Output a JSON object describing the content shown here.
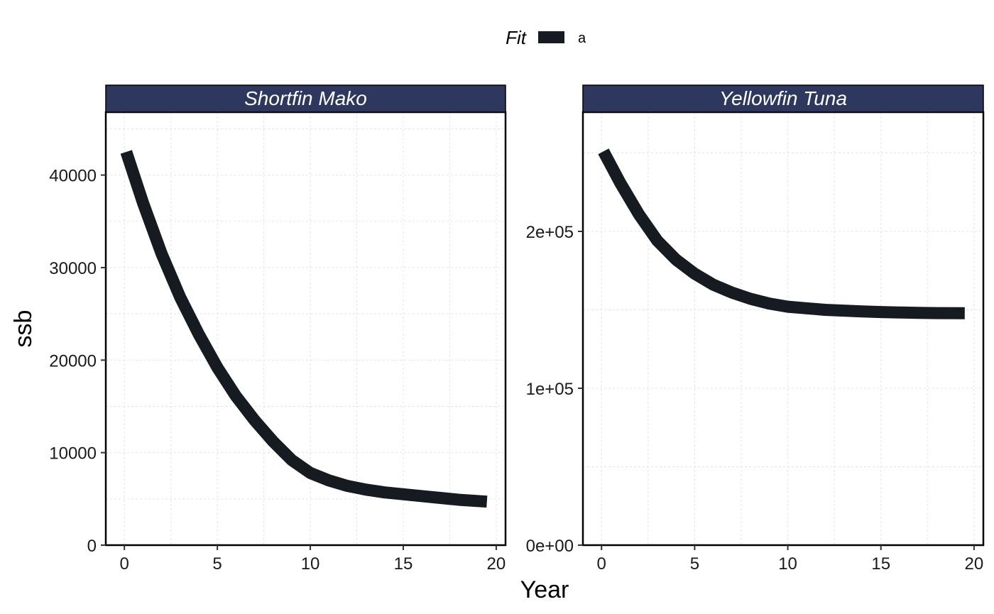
{
  "chart_data": {
    "type": "line",
    "xlabel": "Year",
    "ylabel": "ssb",
    "legend": {
      "title": "Fit",
      "placement": "top",
      "entries": [
        {
          "label": "a",
          "color": "#161b22"
        }
      ]
    },
    "colors": {
      "line": "#161b22",
      "strip": "#2e375e",
      "grid": "#e4e4e4"
    },
    "grid": true,
    "panels": [
      {
        "title": "Shortfin Mako",
        "xlim": [
          -1,
          20.5
        ],
        "ylim": [
          0,
          46800
        ],
        "xticks": [
          0,
          5,
          10,
          15,
          20
        ],
        "xtick_labels": [
          "0",
          "5",
          "10",
          "15",
          "20"
        ],
        "yticks": [
          0,
          10000,
          20000,
          30000,
          40000
        ],
        "ytick_labels": [
          "0",
          "10000",
          "20000",
          "30000",
          "40000"
        ],
        "series": [
          {
            "name": "a",
            "x": [
              0.1,
              1,
              2,
              3,
              4,
              5,
              6,
              7,
              8,
              9,
              10,
              11,
              12,
              13,
              14,
              15,
              16,
              17,
              18,
              19.5
            ],
            "y": [
              42500,
              37000,
              31500,
              26800,
              22800,
              19200,
              16100,
              13500,
              11200,
              9200,
              7800,
              7000,
              6400,
              6000,
              5700,
              5500,
              5300,
              5100,
              4900,
              4700
            ]
          }
        ]
      },
      {
        "title": "Yellowfin Tuna",
        "xlim": [
          -1,
          20.5
        ],
        "ylim": [
          0,
          276000
        ],
        "xticks": [
          0,
          5,
          10,
          15,
          20
        ],
        "xtick_labels": [
          "0",
          "5",
          "10",
          "15",
          "20"
        ],
        "yticks": [
          0,
          100000,
          200000
        ],
        "ytick_labels": [
          "0e+00",
          "1e+05",
          "2e+05"
        ],
        "series": [
          {
            "name": "a",
            "x": [
              0.1,
              1,
              2,
              3,
              4,
              5,
              6,
              7,
              8,
              9,
              10,
              11,
              12,
              13,
              14,
              15,
              16,
              17,
              18,
              19.5
            ],
            "y": [
              251000,
              231000,
              211000,
              194000,
              182000,
              173000,
              166000,
              161000,
              157000,
              154000,
              152000,
              151000,
              150000,
              149500,
              149000,
              148600,
              148300,
              148100,
              147900,
              147800
            ]
          }
        ]
      }
    ]
  }
}
